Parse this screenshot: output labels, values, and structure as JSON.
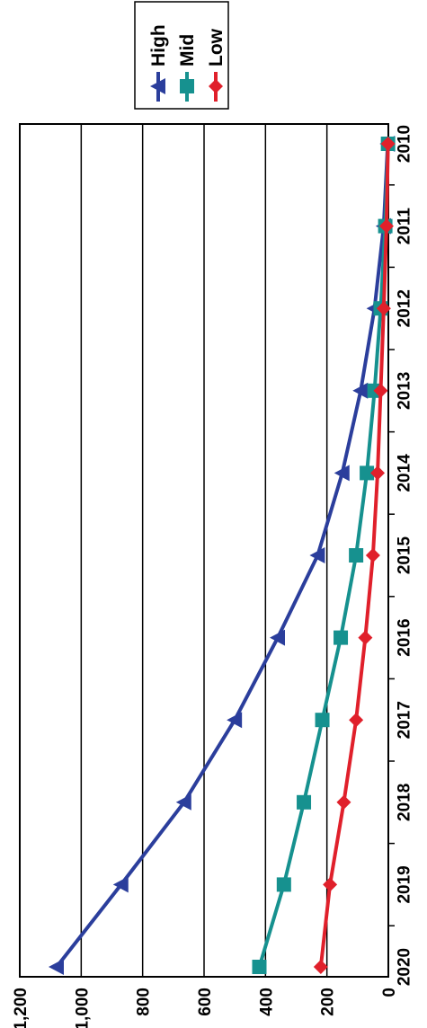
{
  "chart_data": {
    "type": "line",
    "orientation": "rotated-90-clockwise",
    "title": "",
    "xlabel": "",
    "ylabel": "",
    "x": [
      "2010",
      "2011",
      "2012",
      "2013",
      "2014",
      "2015",
      "2016",
      "2017",
      "2018",
      "2019",
      "2020"
    ],
    "ylim": [
      0,
      1200
    ],
    "y_ticks": [
      "0",
      "200",
      "400",
      "600",
      "800",
      "1,000",
      "1,200"
    ],
    "grid": true,
    "legend_position": "top-right",
    "series": [
      {
        "name": "High",
        "color": "#2b3e9c",
        "marker": "triangle",
        "values": [
          2,
          15,
          45,
          90,
          150,
          230,
          360,
          500,
          665,
          870,
          1080
        ]
      },
      {
        "name": "Mid",
        "color": "#16918f",
        "marker": "square",
        "values": [
          1,
          10,
          25,
          45,
          70,
          105,
          155,
          215,
          275,
          340,
          420
        ]
      },
      {
        "name": "Low",
        "color": "#e0202b",
        "marker": "diamond",
        "values": [
          1,
          6,
          15,
          25,
          35,
          50,
          75,
          105,
          145,
          190,
          220
        ]
      }
    ]
  }
}
